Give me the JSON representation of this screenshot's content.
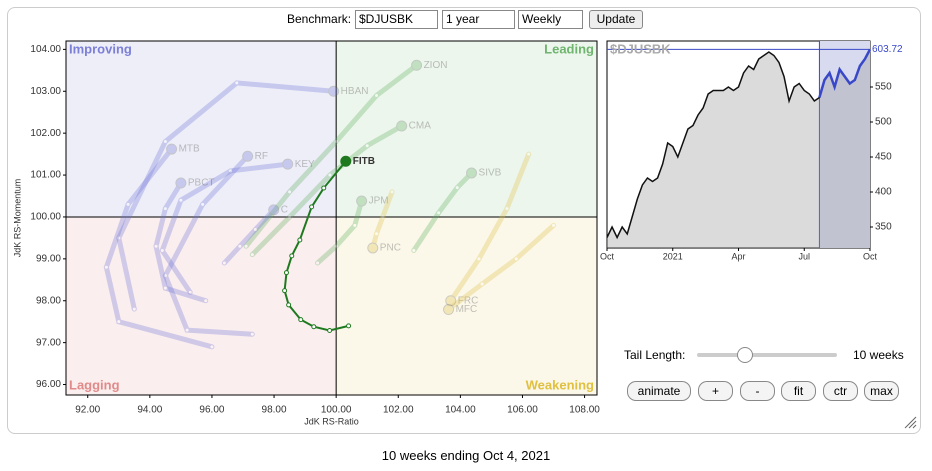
{
  "controls": {
    "benchmark_label": "Benchmark:",
    "benchmark": "$DJUSBK",
    "period": "1 year",
    "interval": "Weekly",
    "update": "Update",
    "tail_label": "Tail Length:",
    "tail_value": "10 weeks",
    "buttons": [
      "animate",
      "+",
      "-",
      "fit",
      "ctr",
      "max"
    ],
    "caption": "10 weeks ending Oct 4, 2021"
  },
  "chart_data": [
    {
      "type": "rrg",
      "x_label": "JdK RS-Ratio",
      "y_label": "JdK RS-Momentum",
      "xlim": [
        91.3,
        108.4
      ],
      "ylim": [
        95.75,
        104.2
      ],
      "xticks": [
        {
          "value": 92,
          "label": "92.00"
        },
        {
          "value": 94,
          "label": "94.00"
        },
        {
          "value": 96,
          "label": "96.00"
        },
        {
          "value": 98,
          "label": "98.00"
        },
        {
          "value": 100,
          "label": "100.00"
        },
        {
          "value": 102,
          "label": "102.00"
        },
        {
          "value": 104,
          "label": "104.00"
        },
        {
          "value": 106,
          "label": "106.00"
        },
        {
          "value": 108,
          "label": "108.00"
        }
      ],
      "yticks": [
        {
          "value": 96,
          "label": "96.00"
        },
        {
          "value": 97,
          "label": "97.00"
        },
        {
          "value": 98,
          "label": "98.00"
        },
        {
          "value": 99,
          "label": "99.00"
        },
        {
          "value": 100,
          "label": "100.00"
        },
        {
          "value": 101,
          "label": "101.00"
        },
        {
          "value": 102,
          "label": "102.00"
        },
        {
          "value": 103,
          "label": "103.00"
        },
        {
          "value": 104,
          "label": "104.00"
        }
      ],
      "quadrant_center": 100,
      "quadrants": [
        {
          "name": "Improving",
          "color": "#7b7fd6",
          "bg": "#eeeef8"
        },
        {
          "name": "Leading",
          "color": "#6fb56f",
          "bg": "#edf6ed"
        },
        {
          "name": "Lagging",
          "color": "#e08a8a",
          "bg": "#faeeee"
        },
        {
          "name": "Weakening",
          "color": "#e0c040",
          "bg": "#fbf8ea"
        }
      ],
      "series": [
        {
          "name": "ZION",
          "color": "#5cae5c",
          "faded": true,
          "x": [
            97.1,
            98.5,
            100.0,
            101.3,
            102.59
          ],
          "y": [
            99.3,
            100.6,
            101.8,
            102.9,
            103.62
          ]
        },
        {
          "name": "HBAN",
          "color": "#6f74d8",
          "faded": true,
          "x": [
            93.5,
            93.0,
            94.5,
            96.8,
            99.92
          ],
          "y": [
            97.8,
            99.5,
            101.8,
            103.2,
            103.0
          ]
        },
        {
          "name": "CMA",
          "color": "#5cae5c",
          "faded": true,
          "x": [
            97.3,
            98.5,
            99.8,
            101.0,
            102.11
          ],
          "y": [
            99.1,
            100.0,
            101.0,
            101.7,
            102.17
          ]
        },
        {
          "name": "MTB",
          "color": "#6f74d8",
          "faded": true,
          "x": [
            96.0,
            93.0,
            92.6,
            93.3,
            94.7
          ],
          "y": [
            96.9,
            97.5,
            98.8,
            100.3,
            101.62
          ]
        },
        {
          "name": "RF",
          "color": "#6f74d8",
          "faded": true,
          "x": [
            97.3,
            95.2,
            94.5,
            95.7,
            97.15
          ],
          "y": [
            97.2,
            97.3,
            98.6,
            100.3,
            101.45
          ]
        },
        {
          "name": "KEY",
          "color": "#6f74d8",
          "faded": true,
          "x": [
            95.3,
            94.4,
            95.0,
            96.6,
            98.44
          ],
          "y": [
            98.2,
            99.2,
            100.4,
            101.1,
            101.26
          ]
        },
        {
          "name": "PBCT",
          "color": "#6f74d8",
          "faded": true,
          "x": [
            95.8,
            94.5,
            94.2,
            94.5,
            95.0
          ],
          "y": [
            98.0,
            98.3,
            99.3,
            100.2,
            100.81
          ]
        },
        {
          "name": "C",
          "color": "#6f74d8",
          "faded": true,
          "x": [
            96.4,
            96.9,
            97.4,
            97.99
          ],
          "y": [
            98.9,
            99.3,
            99.7,
            100.17
          ]
        },
        {
          "name": "JPM",
          "color": "#5cae5c",
          "faded": true,
          "x": [
            99.4,
            100.0,
            100.6,
            100.82
          ],
          "y": [
            98.9,
            99.3,
            99.8,
            100.38
          ]
        },
        {
          "name": "SIVB",
          "color": "#5cae5c",
          "faded": true,
          "x": [
            102.5,
            103.3,
            103.9,
            104.36
          ],
          "y": [
            99.2,
            100.1,
            100.7,
            101.05
          ]
        },
        {
          "name": "PNC",
          "color": "#e0c040",
          "faded": true,
          "x": [
            101.8,
            101.5,
            101.3,
            101.18
          ],
          "y": [
            100.6,
            100.0,
            99.6,
            99.26
          ]
        },
        {
          "name": "FRC",
          "color": "#e0c040",
          "faded": true,
          "x": [
            106.2,
            105.5,
            104.6,
            103.69
          ],
          "y": [
            101.5,
            100.2,
            99.0,
            98.0
          ]
        },
        {
          "name": "MFC",
          "color": "#e0c040",
          "faded": true,
          "x": [
            107.0,
            105.8,
            104.7,
            103.62
          ],
          "y": [
            99.8,
            99.0,
            98.4,
            97.79
          ]
        },
        {
          "name": "FITB",
          "color": "#1f7a1f",
          "faded": false,
          "x": [
            100.4,
            99.79,
            99.28,
            98.86,
            98.47,
            98.34,
            98.4,
            98.57,
            98.83,
            99.21,
            99.6,
            100.31
          ],
          "y": [
            97.4,
            97.29,
            97.38,
            97.55,
            97.9,
            98.24,
            98.67,
            99.07,
            99.45,
            100.24,
            100.69,
            101.33
          ]
        }
      ]
    },
    {
      "type": "line",
      "title": "$DJUSBK",
      "color": "#111111",
      "highlight_color": "#3848c8",
      "highlight_from": 42,
      "xlim": [
        0,
        52
      ],
      "ylim": [
        320,
        615.7
      ],
      "xticks": [
        {
          "value": 0,
          "label": "Oct"
        },
        {
          "value": 13,
          "label": "2021"
        },
        {
          "value": 26,
          "label": "Apr"
        },
        {
          "value": 39,
          "label": "Jul"
        },
        {
          "value": 52,
          "label": "Oct"
        }
      ],
      "yticks": [
        350,
        400,
        450,
        500,
        550
      ],
      "x": [
        0,
        1,
        2,
        3,
        4,
        5,
        6,
        7,
        8,
        9,
        10,
        11,
        12,
        13,
        14,
        15,
        16,
        17,
        18,
        19,
        20,
        21,
        22,
        23,
        24,
        25,
        26,
        27,
        28,
        29,
        30,
        31,
        32,
        33,
        34,
        35,
        36,
        37,
        38,
        39,
        40,
        41,
        42,
        43,
        44,
        45,
        46,
        47,
        48,
        49,
        50,
        51,
        52
      ],
      "values": [
        335,
        350,
        335,
        350,
        340,
        365,
        390,
        410,
        420,
        415,
        420,
        440,
        470,
        465,
        450,
        470,
        490,
        495,
        510,
        520,
        540,
        545,
        545,
        545,
        550,
        545,
        550,
        570,
        580,
        575,
        590,
        595,
        600,
        595,
        585,
        565,
        530,
        550,
        555,
        545,
        540,
        530,
        535,
        560,
        570,
        550,
        575,
        565,
        555,
        560,
        580,
        590,
        603.72
      ]
    }
  ]
}
